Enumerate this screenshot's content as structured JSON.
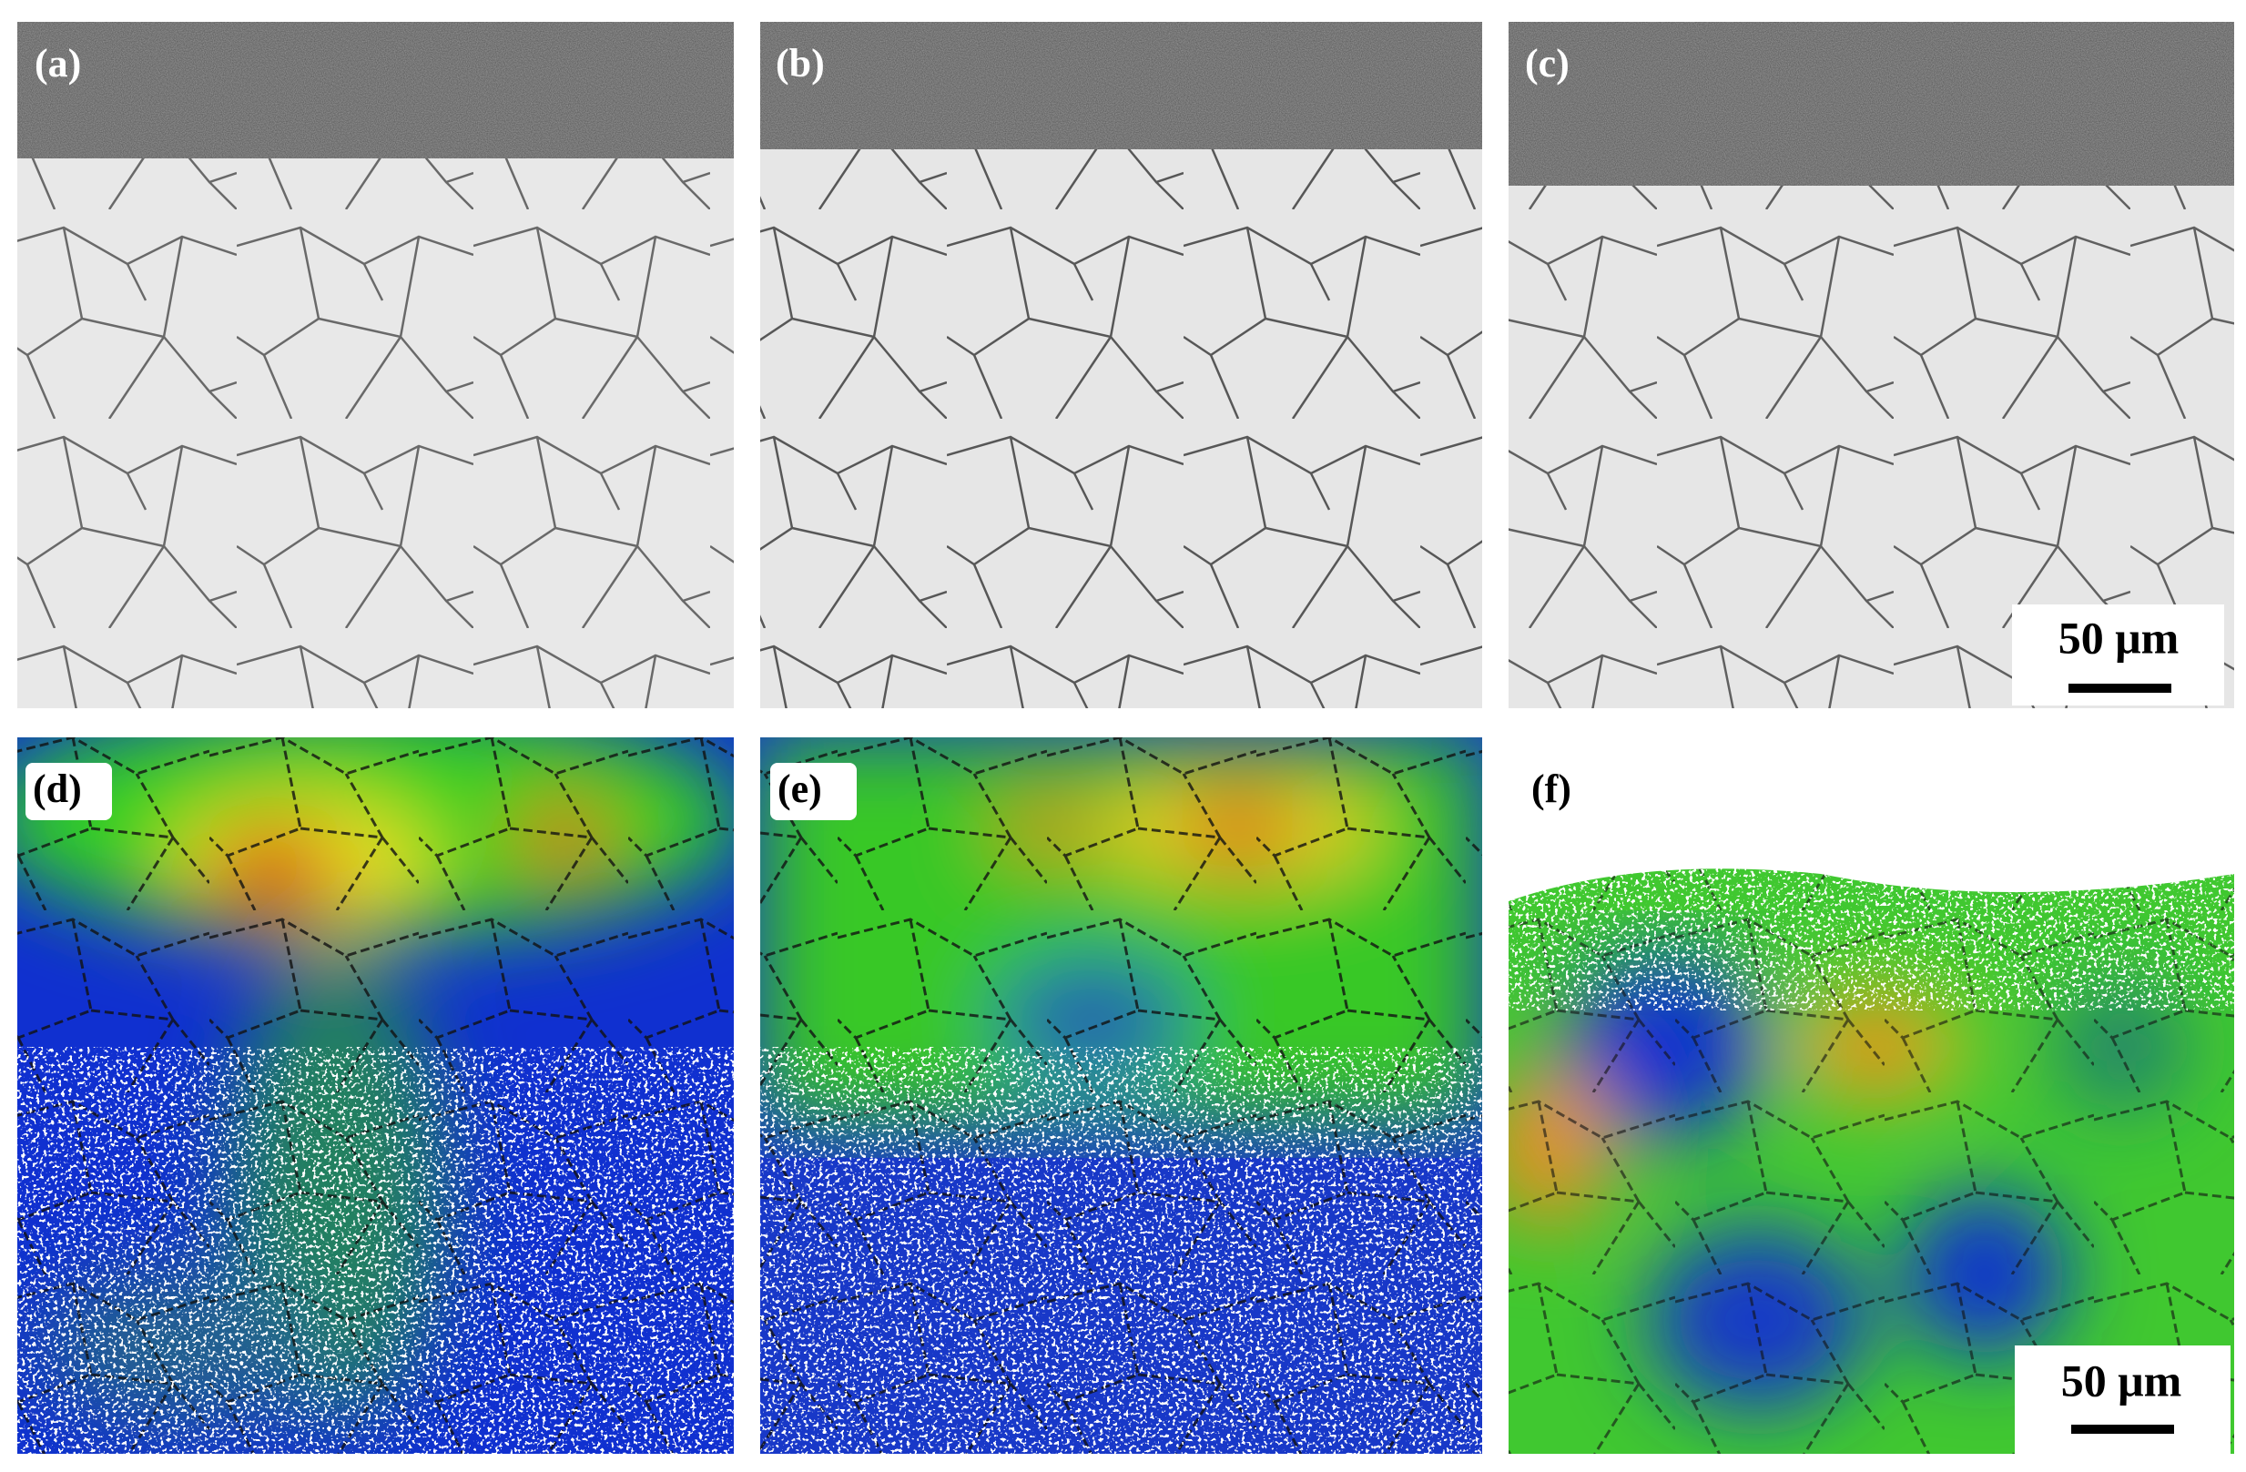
{
  "panels": [
    {
      "label": "(a)"
    },
    {
      "label": "(b)"
    },
    {
      "label": "(c)"
    },
    {
      "label": "(d)"
    },
    {
      "label": "(e)"
    },
    {
      "label": "(f)"
    }
  ],
  "scale_bars": [
    "50 μm",
    "50 μm"
  ]
}
